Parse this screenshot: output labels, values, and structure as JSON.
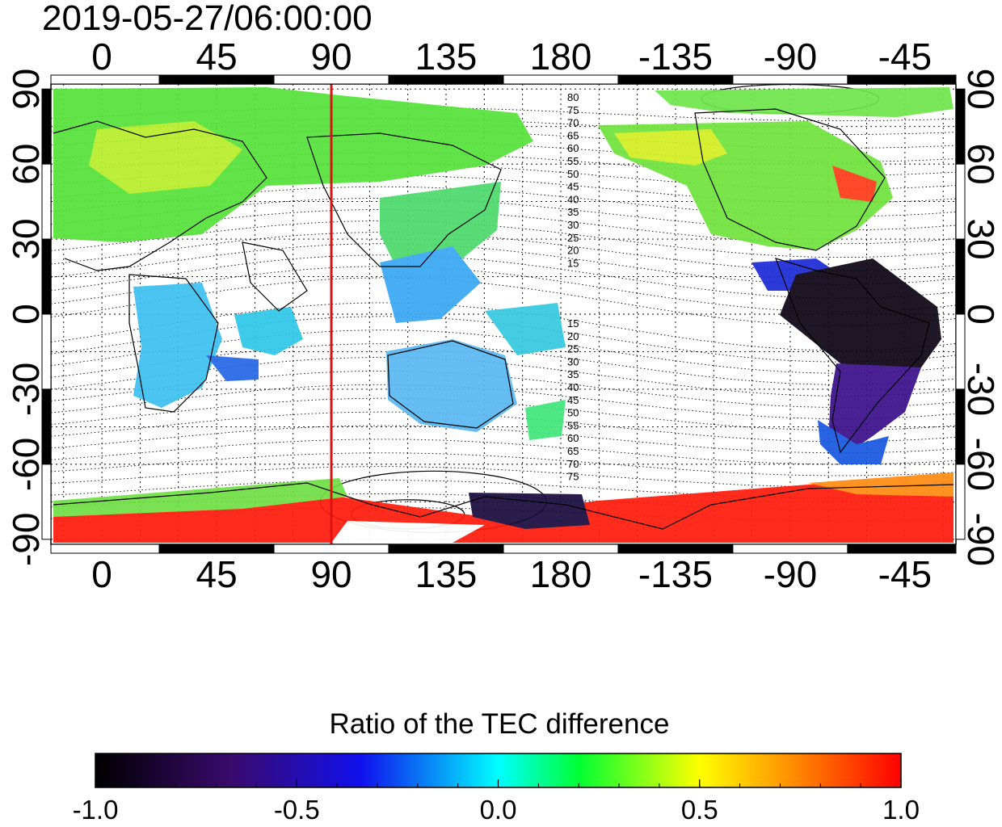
{
  "timestamp": "2019-05-27/06:00:00",
  "map": {
    "x_ticks": [
      "0",
      "45",
      "90",
      "135",
      "180",
      "-135",
      "-90",
      "-45"
    ],
    "x_tick_lons": [
      0,
      45,
      90,
      135,
      180,
      225,
      270,
      315
    ],
    "y_ticks": [
      "90",
      "60",
      "30",
      "0",
      "-30",
      "-60",
      "-90"
    ],
    "y_tick_lats": [
      90,
      60,
      30,
      0,
      -30,
      -60,
      -90
    ],
    "lon_range": [
      -20,
      335
    ],
    "lat_range": [
      -92,
      92
    ],
    "marker_line_lon": 90,
    "marker_color": "#dd1111",
    "contour_labels_north": [
      "80",
      "75",
      "70",
      "65",
      "60",
      "55",
      "50",
      "45",
      "40",
      "35",
      "30",
      "25",
      "20",
      "15"
    ],
    "contour_labels_south": [
      "15",
      "20",
      "25",
      "30",
      "35",
      "40",
      "45",
      "50",
      "55",
      "60",
      "65",
      "70",
      "75"
    ]
  },
  "colorbar": {
    "title": "Ratio of the TEC difference",
    "ticks": [
      "-1.0",
      "-0.5",
      "0.0",
      "0.5",
      "1.0"
    ],
    "range": [
      -1.0,
      1.0
    ],
    "colormap": [
      "#000000",
      "#3a0a6e",
      "#1010ee",
      "#00ffff",
      "#00ff33",
      "#ffff00",
      "#ff8800",
      "#ff0000"
    ]
  }
}
